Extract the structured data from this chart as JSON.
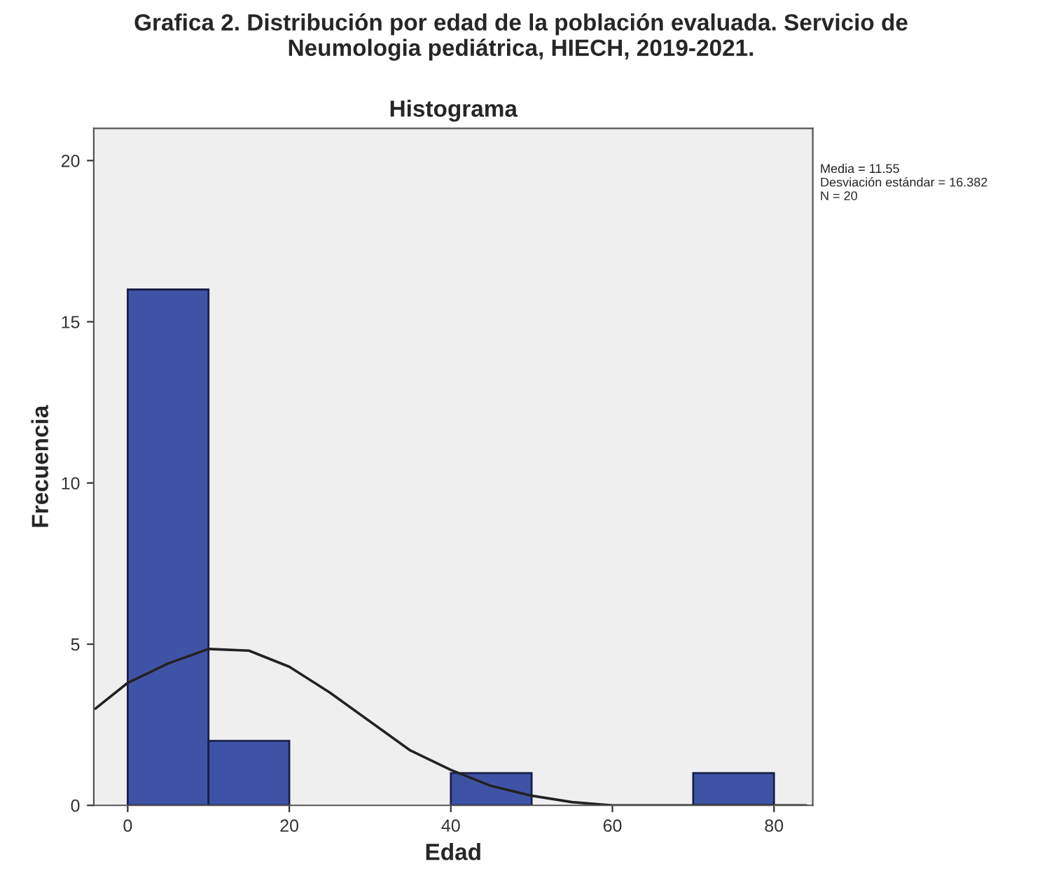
{
  "chart_data": {
    "type": "histogram",
    "title": "Grafica 2. Distribución por edad de la población evaluada. Servicio de\nNeumologia pediátrica, HIECH, 2019-2021.",
    "subtitle": "Histograma",
    "xlabel": "Edad",
    "ylabel": "Frecuencia",
    "bins": [
      0,
      10,
      20,
      30,
      40,
      50,
      60,
      70,
      80
    ],
    "values": [
      16,
      2,
      0,
      0,
      1,
      0,
      0,
      1
    ],
    "color": "#3f53a6",
    "series": [
      {
        "type": "line",
        "color": "#222222",
        "x": [
          -4,
          0,
          5,
          10,
          15,
          20,
          25,
          30,
          35,
          40,
          45,
          50,
          55,
          60,
          70,
          80,
          84
        ],
        "values": [
          3.0,
          3.8,
          4.4,
          4.85,
          4.8,
          4.3,
          3.5,
          2.6,
          1.7,
          1.1,
          0.6,
          0.3,
          0.1,
          0,
          0,
          0,
          0
        ]
      }
    ],
    "xlim": [
      -4.2,
      84.8
    ],
    "ylim": [
      0,
      21
    ],
    "xticks": [
      0,
      20,
      40,
      60,
      80
    ],
    "yticks": [
      0,
      5,
      10,
      15,
      20
    ],
    "grid": false,
    "legend": false,
    "annotations": [
      "Media = 11.55\nDesviación estándar = 16.382\nN = 20"
    ]
  }
}
